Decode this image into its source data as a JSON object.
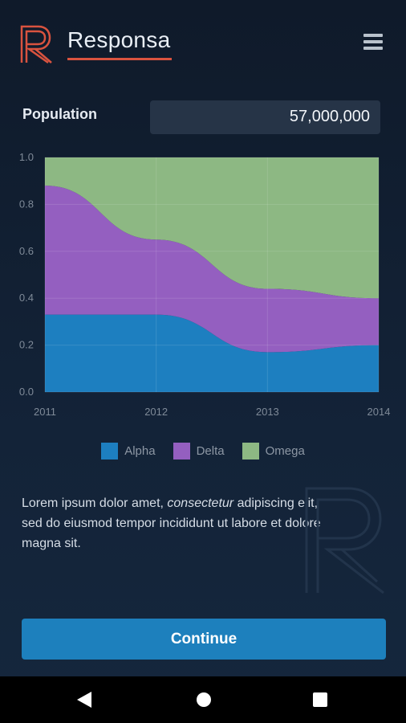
{
  "app": {
    "title": "Responsa",
    "logo_icon": "responsa-r-logo",
    "menu_icon": "hamburger-menu-icon",
    "accent_color": "#d9533f"
  },
  "population": {
    "label": "Population",
    "value": "57,000,000"
  },
  "chart_data": {
    "type": "area",
    "stacked": true,
    "x": [
      2011,
      2012,
      2013,
      2014
    ],
    "xlabel": "",
    "ylabel": "",
    "xlim": [
      2011,
      2014
    ],
    "ylim": [
      0,
      1
    ],
    "y_ticks": [
      "0.0",
      "0.2",
      "0.4",
      "0.6",
      "0.8",
      "1.0"
    ],
    "x_ticks": [
      "2011",
      "2012",
      "2013",
      "2014"
    ],
    "grid": true,
    "legend_position": "bottom",
    "series": [
      {
        "name": "Alpha",
        "color": "#1d7fc0",
        "values": [
          0.33,
          0.33,
          0.17,
          0.2
        ]
      },
      {
        "name": "Delta",
        "color": "#945fc0",
        "values": [
          0.55,
          0.32,
          0.27,
          0.2
        ]
      },
      {
        "name": "Omega",
        "color": "#8db883",
        "values": [
          0.12,
          0.35,
          0.56,
          0.6
        ]
      }
    ]
  },
  "body": {
    "text_before": "Lorem ipsum dolor amet, ",
    "text_italic": "consectetur",
    "text_after": " adipiscing elit, sed do eiusmod tempor incididunt ut labore et dolore magna sit."
  },
  "continue_button": {
    "label": "Continue"
  },
  "navbar": {
    "back_icon": "back-triangle-icon",
    "home_icon": "home-circle-icon",
    "recents_icon": "recents-square-icon"
  }
}
